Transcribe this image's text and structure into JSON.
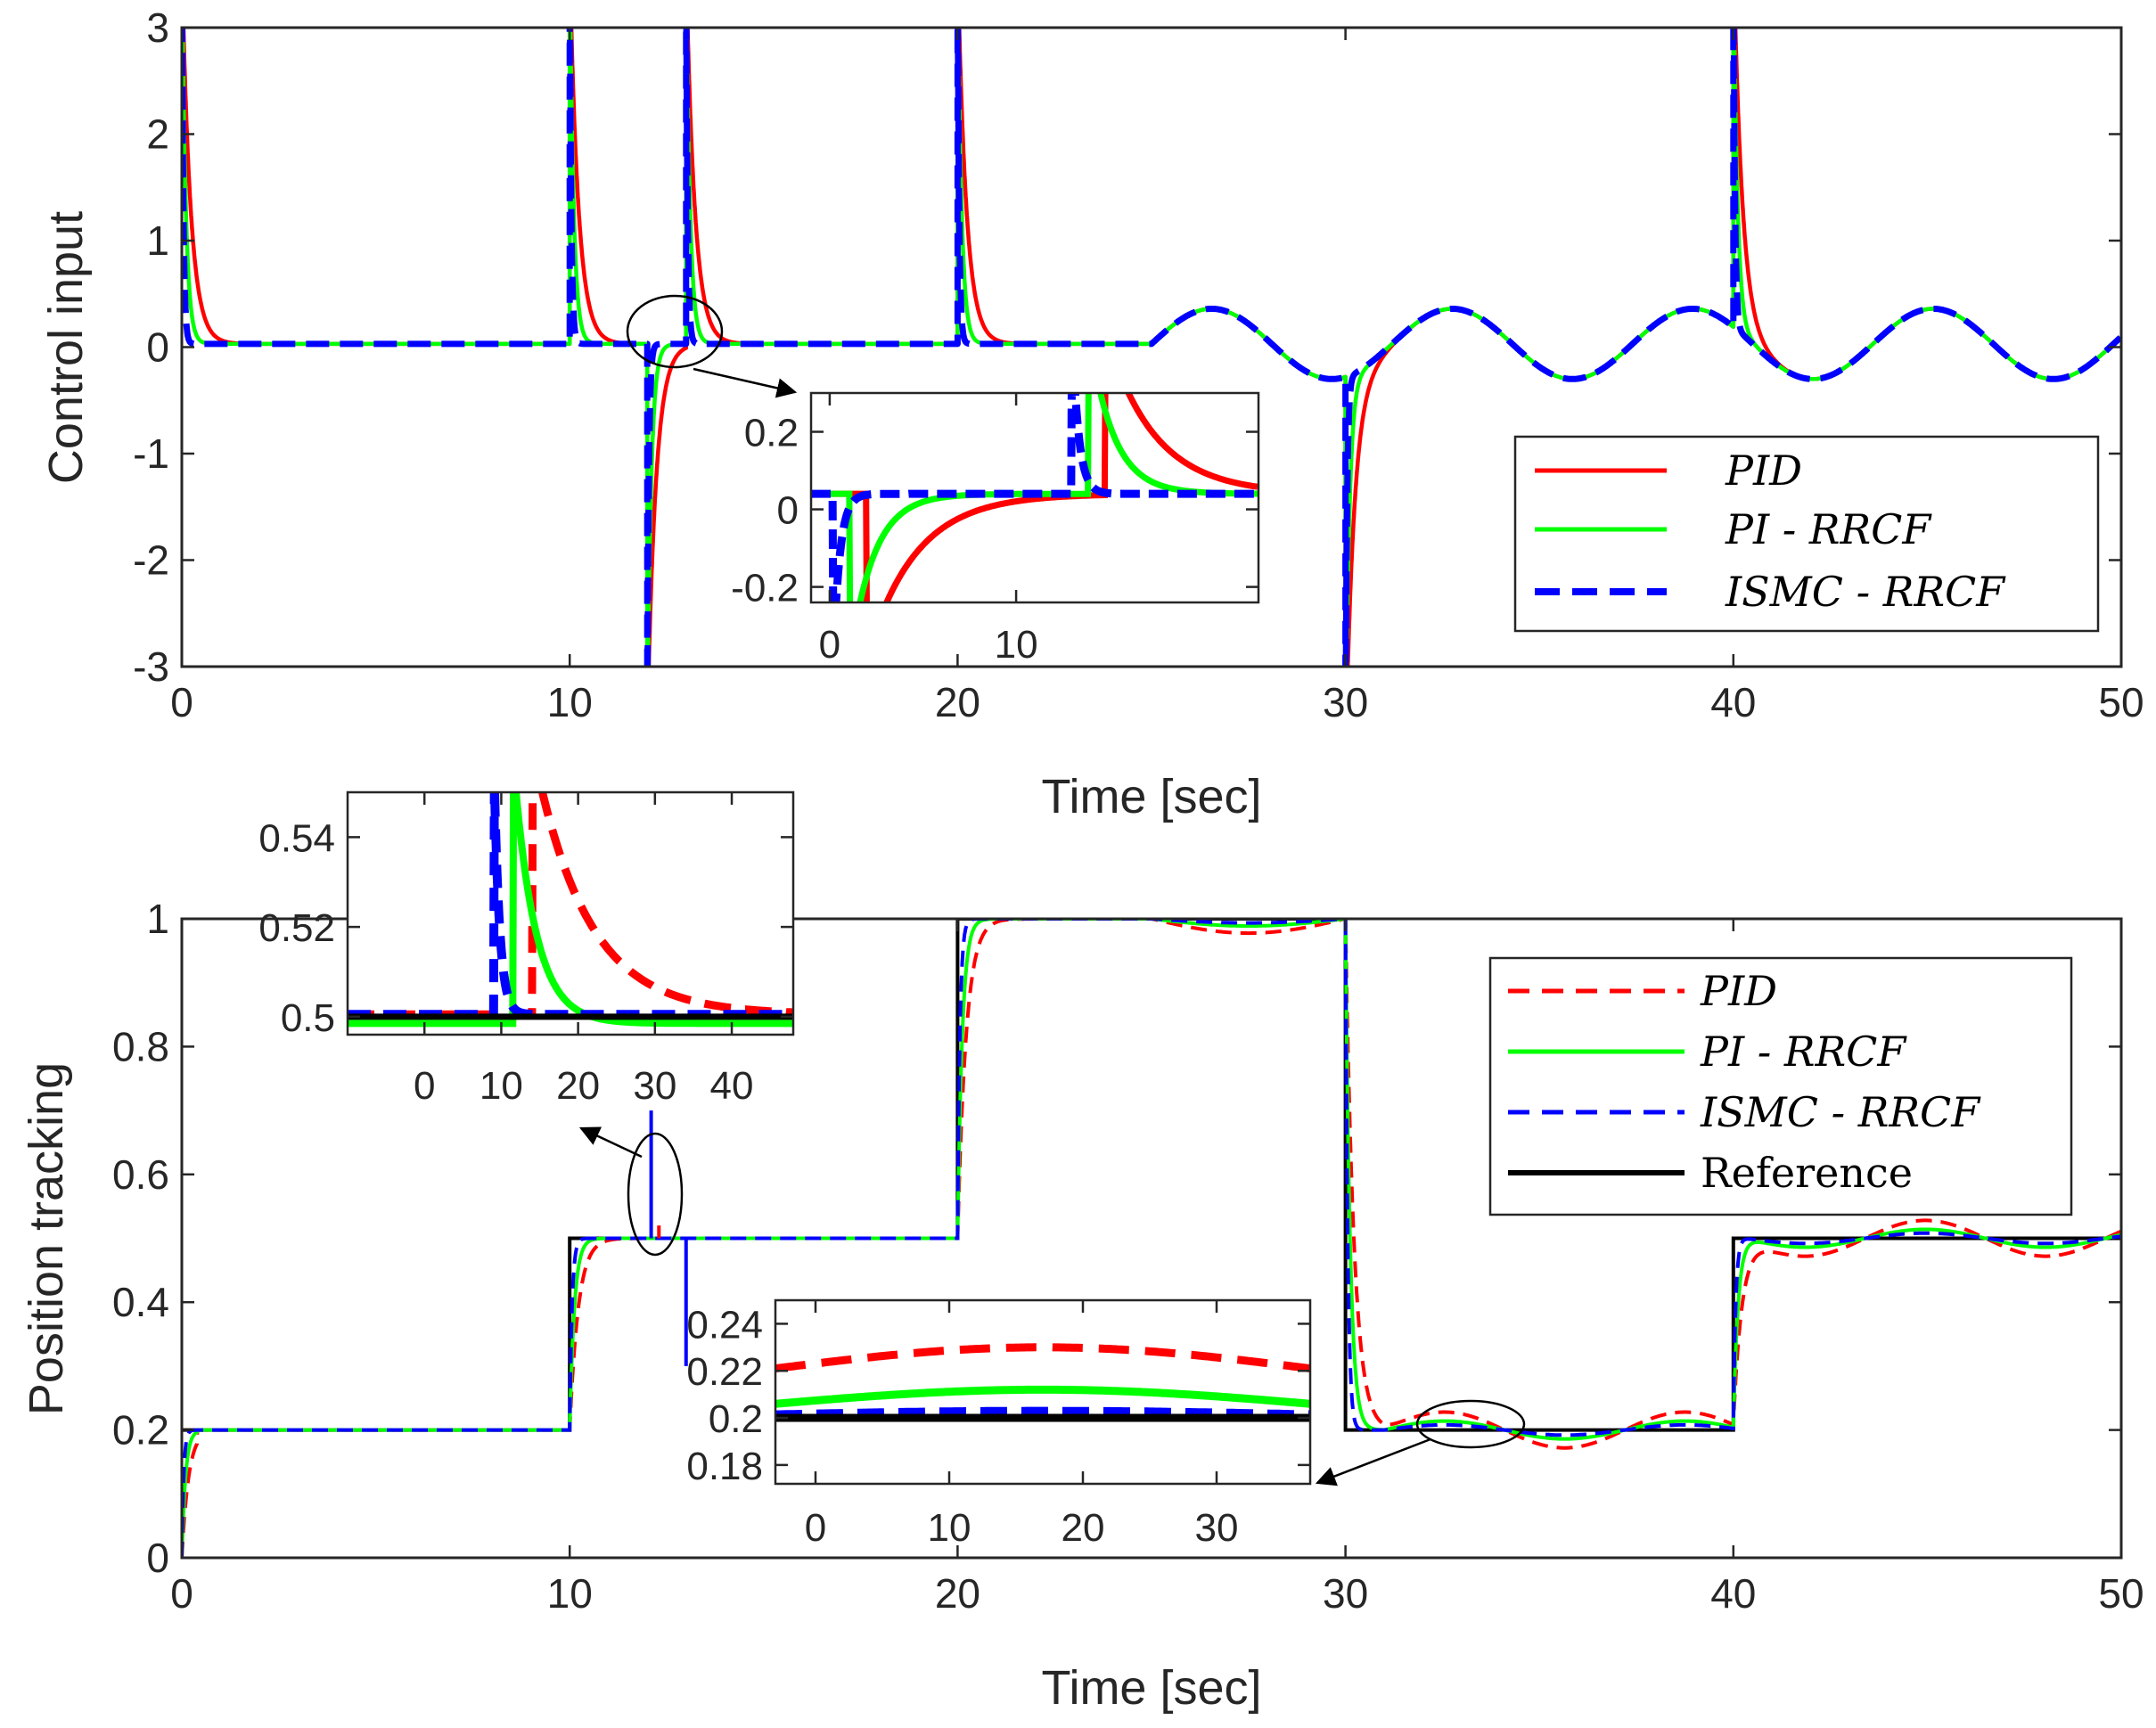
{
  "chart_data": [
    {
      "type": "line",
      "id": "top",
      "xlabel": "Time [sec]",
      "ylabel": "Control input",
      "xlim": [
        0,
        50
      ],
      "ylim": [
        -3,
        3
      ],
      "xticks": [
        0,
        10,
        20,
        30,
        40,
        50
      ],
      "yticks": [
        -3,
        -2,
        -1,
        0,
        1,
        2,
        3
      ],
      "legend_position": "right",
      "reference_value": 0.03,
      "spikes": [
        {
          "t": 0,
          "dir": 1
        },
        {
          "t": 10,
          "dir": 1
        },
        {
          "t": 12,
          "dir": -1
        },
        {
          "t": 13,
          "dir": 1
        },
        {
          "t": 20,
          "dir": 1
        },
        {
          "t": 30,
          "dir": -1
        },
        {
          "t": 40,
          "dir": 1
        }
      ],
      "oscillation": {
        "start": 25,
        "amplitude": 0.33,
        "period": 6.2
      },
      "series": [
        {
          "name": "PID",
          "color": "#ff0000",
          "style": "solid",
          "tau": 0.22
        },
        {
          "name": "PI - RRCF",
          "color": "#00ff00",
          "style": "solid",
          "tau": 0.1
        },
        {
          "name": "ISMC - RRCF",
          "color": "#0000ff",
          "style": "dashed",
          "tau": 0.04
        }
      ],
      "inset": {
        "xticks": [
          0,
          10
        ],
        "yticks": [
          -0.2,
          0,
          0.2
        ],
        "xlim": [
          -1,
          23
        ],
        "ylim": [
          -0.24,
          0.3
        ]
      }
    },
    {
      "type": "line",
      "id": "bottom",
      "xlabel": "Time [sec]",
      "ylabel": "Position tracking",
      "xlim": [
        0,
        50
      ],
      "ylim": [
        0,
        1
      ],
      "xticks": [
        0,
        10,
        20,
        30,
        40,
        50
      ],
      "yticks": [
        0,
        0.2,
        0.4,
        0.6,
        0.8,
        1
      ],
      "legend_position": "top-right",
      "reference": {
        "name": "Reference",
        "t": [
          0,
          10,
          20,
          30,
          40,
          50
        ],
        "values": [
          0.2,
          0.5,
          1,
          0.2,
          0.5,
          0.5
        ]
      },
      "series": [
        {
          "name": "PID",
          "color": "#ff0000",
          "style": "dashed",
          "ripple": 0.028
        },
        {
          "name": "PI - RRCF",
          "color": "#00ff00",
          "style": "solid",
          "ripple": 0.014
        },
        {
          "name": "ISMC - RRCF",
          "color": "#0000ff",
          "style": "dashed",
          "ripple": 0.008
        }
      ],
      "inset_left": {
        "xticks": [
          0,
          10,
          20,
          30,
          40
        ],
        "yticks": [
          0.5,
          0.52,
          0.54
        ],
        "xlim": [
          -10,
          48
        ],
        "ylim": [
          0.496,
          0.55
        ]
      },
      "inset_right": {
        "xticks": [
          0,
          10,
          20,
          30
        ],
        "yticks": [
          0.18,
          0.2,
          0.22,
          0.24
        ],
        "xlim": [
          -3,
          37
        ],
        "ylim": [
          0.172,
          0.25
        ]
      }
    }
  ]
}
